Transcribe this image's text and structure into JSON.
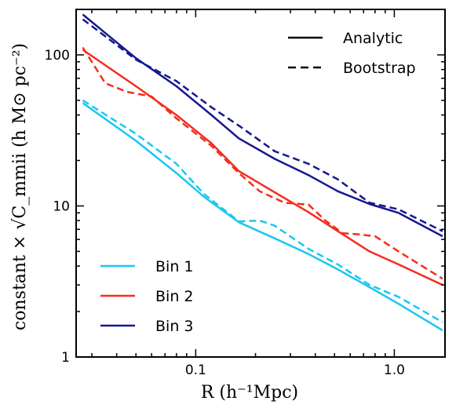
{
  "chart_data": {
    "type": "line",
    "xscale": "log",
    "yscale": "log",
    "xlim": [
      0.025,
      1.8
    ],
    "ylim": [
      1,
      200
    ],
    "xticks": [
      {
        "value": 0.1,
        "label": "0.1"
      },
      {
        "value": 1.0,
        "label": "1.0"
      }
    ],
    "yticks": [
      {
        "value": 1,
        "label": "1"
      },
      {
        "value": 10,
        "label": "10"
      },
      {
        "value": 100,
        "label": "100"
      }
    ],
    "xlabel": "R (h⁻¹Mpc)",
    "ylabel": "constant × √C_mmii (h M⊙ pc⁻²)",
    "style_legend": [
      {
        "label": "Analytic",
        "dash": "solid"
      },
      {
        "label": "Bootstrap",
        "dash": "dashed"
      }
    ],
    "series_legend_labels": [
      "Bin 1",
      "Bin 2",
      "Bin 3"
    ],
    "series": [
      {
        "name": "Bin 1",
        "method": "Analytic",
        "color": "#1ac8f0",
        "x": [
          0.027,
          0.05,
          0.08,
          0.11,
          0.165,
          0.25,
          0.37,
          0.52,
          0.75,
          1.05,
          1.75
        ],
        "y": [
          48,
          27,
          16.5,
          11.5,
          7.8,
          6.1,
          4.8,
          3.8,
          2.9,
          2.25,
          1.5
        ]
      },
      {
        "name": "Bin 1",
        "method": "Bootstrap",
        "color": "#1ac8f0",
        "x": [
          0.027,
          0.05,
          0.08,
          0.11,
          0.165,
          0.21,
          0.25,
          0.37,
          0.52,
          0.75,
          1.05,
          1.75
        ],
        "y": [
          50,
          30,
          19,
          12,
          7.9,
          8.0,
          7.4,
          5.2,
          4.1,
          3.0,
          2.5,
          1.7
        ]
      },
      {
        "name": "Bin 2",
        "method": "Analytic",
        "color": "#f52d1e",
        "x": [
          0.027,
          0.05,
          0.08,
          0.12,
          0.165,
          0.25,
          0.37,
          0.52,
          0.75,
          1.05,
          1.75
        ],
        "y": [
          108,
          62,
          40,
          26,
          17,
          12.3,
          9.1,
          6.8,
          5.0,
          4.1,
          3.0
        ]
      },
      {
        "name": "Bin 2",
        "method": "Bootstrap",
        "color": "#f52d1e",
        "x": [
          0.027,
          0.035,
          0.045,
          0.06,
          0.08,
          0.12,
          0.165,
          0.21,
          0.28,
          0.37,
          0.45,
          0.55,
          0.65,
          0.8,
          1.05,
          1.75
        ],
        "y": [
          112,
          65,
          57,
          53,
          38,
          25,
          16.5,
          12.5,
          10.5,
          10.2,
          8.0,
          6.6,
          6.5,
          6.3,
          5.0,
          3.3
        ]
      },
      {
        "name": "Bin 3",
        "method": "Analytic",
        "color": "#16188f",
        "x": [
          0.027,
          0.05,
          0.08,
          0.12,
          0.165,
          0.25,
          0.37,
          0.52,
          0.75,
          1.05,
          1.75
        ],
        "y": [
          185,
          95,
          62,
          40,
          28,
          20.5,
          16,
          12.5,
          10.3,
          9.0,
          6.3
        ]
      },
      {
        "name": "Bin 3",
        "method": "Bootstrap",
        "color": "#16188f",
        "x": [
          0.027,
          0.05,
          0.08,
          0.12,
          0.165,
          0.25,
          0.37,
          0.52,
          0.75,
          1.05,
          1.75
        ],
        "y": [
          172,
          93,
          67,
          45,
          34,
          23,
          19,
          15,
          10.5,
          9.5,
          6.8
        ]
      }
    ],
    "legends": {
      "style": "top-right",
      "series": "bottom-left"
    }
  }
}
